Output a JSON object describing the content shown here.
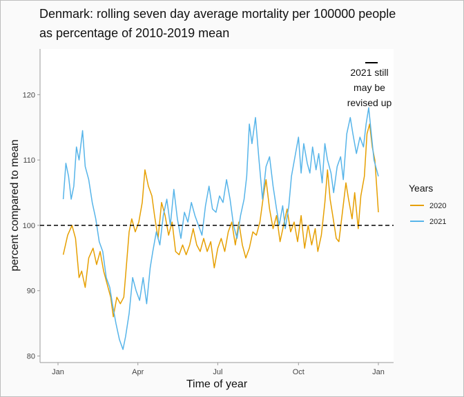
{
  "title_line1": "Denmark: rolling seven day average mortality per 100000 people",
  "title_line2": "as percentage of 2010-2019 mean",
  "chart_data": {
    "type": "line",
    "xlabel": "Time of year",
    "ylabel": "percent compared to mean",
    "x_ticks": [
      "Jan",
      "Apr",
      "Jul",
      "Oct",
      "Jan"
    ],
    "x_domain": [
      "2020-01-01",
      "2020-12-31"
    ],
    "ylim": [
      79,
      127
    ],
    "y_ticks": [
      80,
      90,
      100,
      110,
      120
    ],
    "reference_line": {
      "y": 100,
      "style": "dashed"
    },
    "annotation": [
      "2021 still",
      "may be",
      "revised up"
    ],
    "legend": {
      "title": "Years",
      "position": "right"
    },
    "grid": false,
    "series": [
      {
        "name": "2020",
        "color": "#E69F00",
        "points": [
          [
            "2020-01-07",
            95.5
          ],
          [
            "2020-01-12",
            98.5
          ],
          [
            "2020-01-17",
            100.0
          ],
          [
            "2020-01-21",
            98.0
          ],
          [
            "2020-01-25",
            92.0
          ],
          [
            "2020-01-28",
            93.0
          ],
          [
            "2020-02-01",
            90.5
          ],
          [
            "2020-02-05",
            95.0
          ],
          [
            "2020-02-10",
            96.5
          ],
          [
            "2020-02-14",
            94.0
          ],
          [
            "2020-02-18",
            96.0
          ],
          [
            "2020-02-22",
            93.0
          ],
          [
            "2020-02-26",
            91.0
          ],
          [
            "2020-03-01",
            89.0
          ],
          [
            "2020-03-04",
            86.0
          ],
          [
            "2020-03-08",
            89.0
          ],
          [
            "2020-03-12",
            88.0
          ],
          [
            "2020-03-16",
            89.0
          ],
          [
            "2020-03-19",
            94.0
          ],
          [
            "2020-03-22",
            99.0
          ],
          [
            "2020-03-25",
            101.0
          ],
          [
            "2020-03-29",
            99.0
          ],
          [
            "2020-04-02",
            100.5
          ],
          [
            "2020-04-06",
            103.5
          ],
          [
            "2020-04-09",
            108.5
          ],
          [
            "2020-04-13",
            106.0
          ],
          [
            "2020-04-17",
            104.5
          ],
          [
            "2020-04-20",
            101.5
          ],
          [
            "2020-04-24",
            98.0
          ],
          [
            "2020-04-28",
            103.5
          ],
          [
            "2020-05-02",
            101.5
          ],
          [
            "2020-05-06",
            98.5
          ],
          [
            "2020-05-10",
            100.5
          ],
          [
            "2020-05-14",
            96.0
          ],
          [
            "2020-05-18",
            95.5
          ],
          [
            "2020-05-22",
            97.0
          ],
          [
            "2020-05-26",
            95.5
          ],
          [
            "2020-05-30",
            97.0
          ],
          [
            "2020-06-03",
            99.5
          ],
          [
            "2020-06-07",
            97.0
          ],
          [
            "2020-06-11",
            96.0
          ],
          [
            "2020-06-15",
            98.0
          ],
          [
            "2020-06-19",
            96.0
          ],
          [
            "2020-06-23",
            97.5
          ],
          [
            "2020-06-27",
            93.5
          ],
          [
            "2020-07-01",
            96.5
          ],
          [
            "2020-07-05",
            98.0
          ],
          [
            "2020-07-09",
            96.0
          ],
          [
            "2020-07-13",
            99.0
          ],
          [
            "2020-07-17",
            100.5
          ],
          [
            "2020-07-21",
            97.0
          ],
          [
            "2020-07-25",
            100.5
          ],
          [
            "2020-07-29",
            97.0
          ],
          [
            "2020-08-02",
            95.0
          ],
          [
            "2020-08-06",
            96.5
          ],
          [
            "2020-08-10",
            99.0
          ],
          [
            "2020-08-14",
            98.5
          ],
          [
            "2020-08-18",
            100.5
          ],
          [
            "2020-08-22",
            104.5
          ],
          [
            "2020-08-25",
            107.0
          ],
          [
            "2020-08-29",
            102.5
          ],
          [
            "2020-09-02",
            99.5
          ],
          [
            "2020-09-06",
            101.5
          ],
          [
            "2020-09-10",
            97.5
          ],
          [
            "2020-09-14",
            100.0
          ],
          [
            "2020-09-18",
            102.5
          ],
          [
            "2020-09-22",
            99.0
          ],
          [
            "2020-09-26",
            100.5
          ],
          [
            "2020-09-30",
            97.5
          ],
          [
            "2020-10-04",
            101.5
          ],
          [
            "2020-10-08",
            96.5
          ],
          [
            "2020-10-12",
            100.0
          ],
          [
            "2020-10-16",
            97.0
          ],
          [
            "2020-10-20",
            99.5
          ],
          [
            "2020-10-23",
            96.0
          ],
          [
            "2020-10-27",
            98.5
          ],
          [
            "2020-10-31",
            103.5
          ],
          [
            "2020-11-03",
            108.5
          ],
          [
            "2020-11-06",
            104.0
          ],
          [
            "2020-11-09",
            101.5
          ],
          [
            "2020-11-13",
            98.0
          ],
          [
            "2020-11-16",
            97.5
          ],
          [
            "2020-11-20",
            102.0
          ],
          [
            "2020-11-24",
            106.5
          ],
          [
            "2020-11-27",
            104.0
          ],
          [
            "2020-12-01",
            101.0
          ],
          [
            "2020-12-04",
            105.0
          ],
          [
            "2020-12-08",
            99.5
          ],
          [
            "2020-12-11",
            104.5
          ],
          [
            "2020-12-15",
            107.5
          ],
          [
            "2020-12-18",
            114.0
          ],
          [
            "2020-12-21",
            115.5
          ],
          [
            "2020-12-24",
            112.0
          ],
          [
            "2020-12-27",
            110.0
          ],
          [
            "2020-12-29",
            106.0
          ],
          [
            "2020-12-31",
            102.0
          ]
        ]
      },
      {
        "name": "2021",
        "color": "#56B4E9",
        "points": [
          [
            "2020-01-07",
            104.0
          ],
          [
            "2020-01-10",
            109.5
          ],
          [
            "2020-01-13",
            107.5
          ],
          [
            "2020-01-16",
            104.0
          ],
          [
            "2020-01-19",
            106.0
          ],
          [
            "2020-01-22",
            112.0
          ],
          [
            "2020-01-25",
            110.0
          ],
          [
            "2020-01-29",
            114.5
          ],
          [
            "2020-02-01",
            109.0
          ],
          [
            "2020-02-05",
            107.0
          ],
          [
            "2020-02-09",
            103.5
          ],
          [
            "2020-02-13",
            101.0
          ],
          [
            "2020-02-17",
            97.5
          ],
          [
            "2020-02-21",
            96.0
          ],
          [
            "2020-02-25",
            92.0
          ],
          [
            "2020-02-29",
            90.5
          ],
          [
            "2020-03-03",
            88.0
          ],
          [
            "2020-03-07",
            85.0
          ],
          [
            "2020-03-11",
            82.5
          ],
          [
            "2020-03-15",
            81.0
          ],
          [
            "2020-03-18",
            83.0
          ],
          [
            "2020-03-22",
            86.5
          ],
          [
            "2020-03-26",
            92.0
          ],
          [
            "2020-03-30",
            90.0
          ],
          [
            "2020-04-03",
            88.5
          ],
          [
            "2020-04-07",
            92.0
          ],
          [
            "2020-04-11",
            88.0
          ],
          [
            "2020-04-15",
            93.5
          ],
          [
            "2020-04-18",
            96.0
          ],
          [
            "2020-04-22",
            99.0
          ],
          [
            "2020-04-26",
            97.0
          ],
          [
            "2020-04-30",
            101.5
          ],
          [
            "2020-05-04",
            104.0
          ],
          [
            "2020-05-08",
            100.0
          ],
          [
            "2020-05-12",
            105.5
          ],
          [
            "2020-05-16",
            101.0
          ],
          [
            "2020-05-20",
            98.0
          ],
          [
            "2020-05-24",
            102.0
          ],
          [
            "2020-05-28",
            100.5
          ],
          [
            "2020-06-01",
            103.5
          ],
          [
            "2020-06-05",
            101.5
          ],
          [
            "2020-06-09",
            100.0
          ],
          [
            "2020-06-13",
            98.5
          ],
          [
            "2020-06-17",
            103.0
          ],
          [
            "2020-06-21",
            106.0
          ],
          [
            "2020-06-25",
            102.5
          ],
          [
            "2020-06-29",
            102.0
          ],
          [
            "2020-07-03",
            104.5
          ],
          [
            "2020-07-07",
            103.5
          ],
          [
            "2020-07-11",
            107.0
          ],
          [
            "2020-07-15",
            104.0
          ],
          [
            "2020-07-19",
            100.0
          ],
          [
            "2020-07-23",
            98.0
          ],
          [
            "2020-07-27",
            101.5
          ],
          [
            "2020-07-31",
            104.0
          ],
          [
            "2020-08-03",
            107.5
          ],
          [
            "2020-08-06",
            115.5
          ],
          [
            "2020-08-09",
            112.5
          ],
          [
            "2020-08-13",
            116.5
          ],
          [
            "2020-08-17",
            110.0
          ],
          [
            "2020-08-21",
            104.0
          ],
          [
            "2020-08-25",
            109.0
          ],
          [
            "2020-08-29",
            110.5
          ],
          [
            "2020-09-02",
            106.0
          ],
          [
            "2020-09-06",
            102.5
          ],
          [
            "2020-09-09",
            100.0
          ],
          [
            "2020-09-13",
            103.0
          ],
          [
            "2020-09-16",
            99.5
          ],
          [
            "2020-09-20",
            103.0
          ],
          [
            "2020-09-23",
            107.5
          ],
          [
            "2020-09-27",
            110.5
          ],
          [
            "2020-10-01",
            113.5
          ],
          [
            "2020-10-04",
            108.0
          ],
          [
            "2020-10-07",
            112.5
          ],
          [
            "2020-10-11",
            109.5
          ],
          [
            "2020-10-14",
            108.0
          ],
          [
            "2020-10-17",
            112.0
          ],
          [
            "2020-10-21",
            108.5
          ],
          [
            "2020-10-24",
            111.0
          ],
          [
            "2020-10-28",
            106.5
          ],
          [
            "2020-10-31",
            112.5
          ],
          [
            "2020-11-03",
            110.0
          ],
          [
            "2020-11-07",
            108.0
          ],
          [
            "2020-11-10",
            105.0
          ],
          [
            "2020-11-14",
            109.0
          ],
          [
            "2020-11-18",
            110.5
          ],
          [
            "2020-11-21",
            107.0
          ],
          [
            "2020-11-25",
            114.0
          ],
          [
            "2020-11-29",
            116.5
          ],
          [
            "2020-12-02",
            114.0
          ],
          [
            "2020-12-06",
            111.0
          ],
          [
            "2020-12-10",
            113.5
          ],
          [
            "2020-12-14",
            112.0
          ],
          [
            "2020-12-17",
            115.5
          ],
          [
            "2020-12-20",
            118.0
          ],
          [
            "2020-12-23",
            114.0
          ],
          [
            "2020-12-26",
            110.0
          ],
          [
            "2020-12-29",
            108.5
          ],
          [
            "2020-12-31",
            107.5
          ]
        ]
      }
    ]
  }
}
